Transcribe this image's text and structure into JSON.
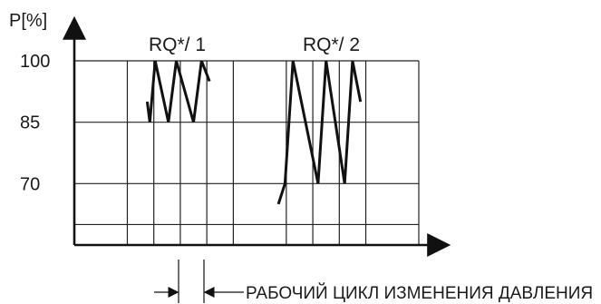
{
  "chart_data": {
    "type": "line",
    "ylabel": "P[%]",
    "xlabel": "",
    "y_ticks": [
      "100",
      "85",
      "70"
    ],
    "y_tick_values": [
      100,
      85,
      70
    ],
    "ylim": [
      55,
      100
    ],
    "grid": true,
    "series": [
      {
        "name": "RQ*/ 1",
        "points": [
          [
            2.75,
            90
          ],
          [
            2.85,
            85
          ],
          [
            3.05,
            100
          ],
          [
            3.55,
            85
          ],
          [
            3.85,
            100
          ],
          [
            4.5,
            85
          ],
          [
            4.8,
            100
          ],
          [
            5.1,
            95
          ]
        ]
      },
      {
        "name": "RQ*/ 2",
        "points": [
          [
            7.7,
            65
          ],
          [
            7.95,
            70
          ],
          [
            8.25,
            100
          ],
          [
            9.2,
            70
          ],
          [
            9.5,
            100
          ],
          [
            10.2,
            70
          ],
          [
            10.5,
            100
          ],
          [
            10.8,
            90
          ]
        ]
      }
    ],
    "annotation": "РАБОЧИЙ ЦИКЛ ИЗМЕНЕНИЯ ДАВЛЕНИЯ"
  }
}
